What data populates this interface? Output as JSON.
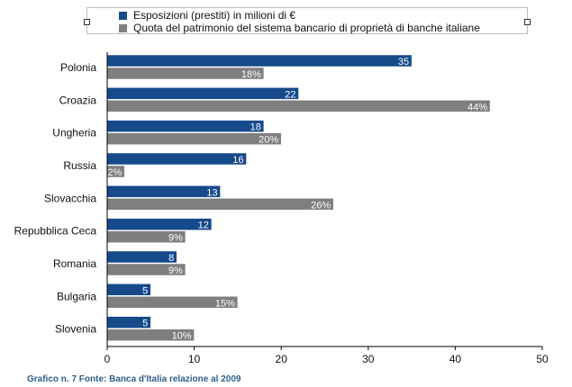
{
  "legend": {
    "items": [
      {
        "label": "Esposizioni (prestiti) in milioni di €",
        "color": "#164a8b"
      },
      {
        "label": "Quota del patrimonio del sistema bancario di proprietà di banche italiane",
        "color": "#7f7f7f"
      }
    ]
  },
  "caption": "Grafico n. 7  Fonte: Banca d'Italia relazione al 2009",
  "chart_data": {
    "type": "bar",
    "orientation": "horizontal",
    "categories": [
      "Polonia",
      "Croazia",
      "Ungheria",
      "Russia",
      "Slovacchia",
      "Repubblica Ceca",
      "Romania",
      "Bulgaria",
      "Slovenia"
    ],
    "series": [
      {
        "name": "Esposizioni (prestiti) in milioni di €",
        "color": "#164a8b",
        "values": [
          35,
          22,
          18,
          16,
          13,
          12,
          8,
          5,
          5
        ],
        "labels": [
          "35",
          "22",
          "18",
          "16",
          "13",
          "12",
          "8",
          "5",
          "5"
        ]
      },
      {
        "name": "Quota del patrimonio del sistema bancario di proprietà di banche italiane",
        "color": "#7f7f7f",
        "values": [
          18,
          44,
          20,
          2,
          26,
          9,
          9,
          15,
          10
        ],
        "labels": [
          "18%",
          "44%",
          "20%",
          "2%",
          "26%",
          "9%",
          "9%",
          "15%",
          "10%"
        ]
      }
    ],
    "xlim": [
      0,
      50
    ],
    "xticks": [
      "0",
      "10",
      "20",
      "30",
      "40",
      "50"
    ],
    "grid": false,
    "legend_position": "top"
  }
}
